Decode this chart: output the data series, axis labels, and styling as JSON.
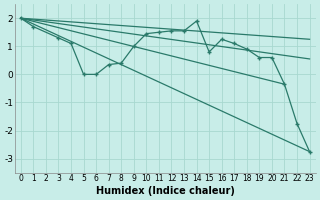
{
  "xlabel": "Humidex (Indice chaleur)",
  "background_color": "#c8ede8",
  "grid_color": "#a8d8d0",
  "line_color": "#2a7a6a",
  "xlim": [
    -0.5,
    23.5
  ],
  "ylim": [
    -3.5,
    2.5
  ],
  "yticks": [
    -3,
    -2,
    -1,
    0,
    1,
    2
  ],
  "xticks": [
    0,
    1,
    2,
    3,
    4,
    5,
    6,
    7,
    8,
    9,
    10,
    11,
    12,
    13,
    14,
    15,
    16,
    17,
    18,
    19,
    20,
    21,
    22,
    23
  ],
  "main_series": [
    [
      0,
      2.0
    ],
    [
      1,
      1.7
    ],
    [
      3,
      1.3
    ],
    [
      4,
      1.1
    ],
    [
      5,
      0.0
    ],
    [
      6,
      0.0
    ],
    [
      7,
      0.35
    ],
    [
      8,
      0.4
    ],
    [
      9,
      1.0
    ],
    [
      10,
      1.45
    ],
    [
      11,
      1.5
    ],
    [
      12,
      1.55
    ],
    [
      13,
      1.55
    ],
    [
      14,
      1.9
    ],
    [
      15,
      0.8
    ],
    [
      16,
      1.25
    ],
    [
      17,
      1.1
    ],
    [
      18,
      0.9
    ],
    [
      19,
      0.6
    ],
    [
      20,
      0.6
    ],
    [
      21,
      -0.35
    ],
    [
      22,
      -1.75
    ],
    [
      23,
      -2.75
    ]
  ],
  "diag_lines": [
    [
      [
        0,
        2.0
      ],
      [
        23,
        -2.75
      ]
    ],
    [
      [
        0,
        2.0
      ],
      [
        21,
        -0.35
      ]
    ],
    [
      [
        0,
        2.0
      ],
      [
        23,
        0.55
      ]
    ],
    [
      [
        0,
        2.0
      ],
      [
        23,
        1.25
      ]
    ]
  ]
}
